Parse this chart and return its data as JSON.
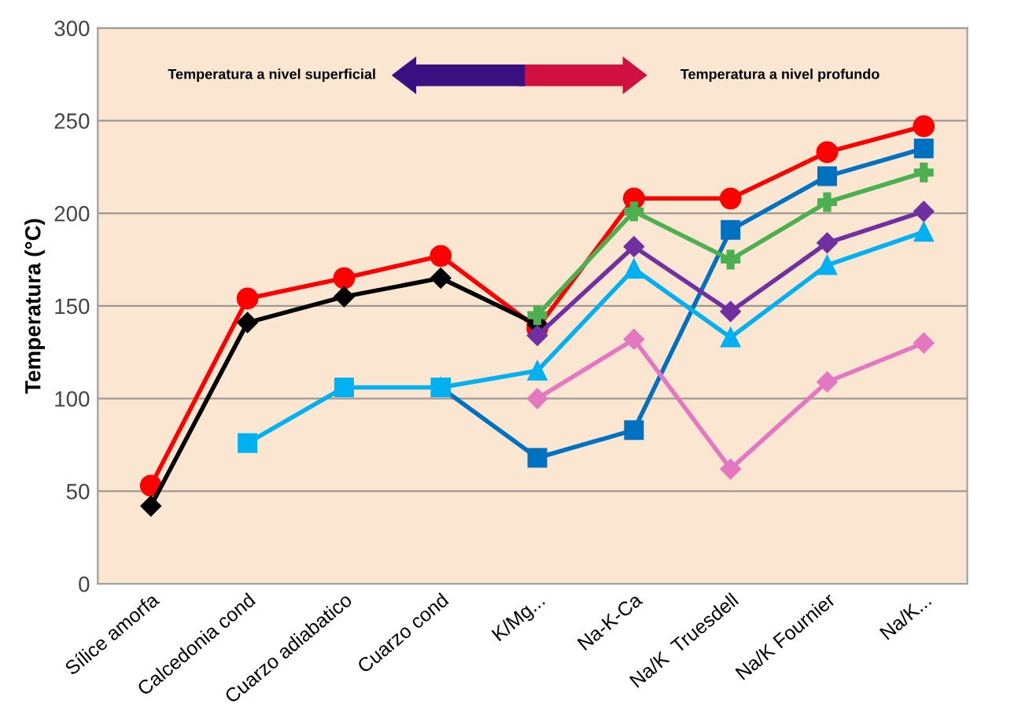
{
  "chart_data": {
    "type": "line",
    "ylabel": "Temperatura (°C)",
    "categories": [
      "Sílice amorfa",
      "Calcedonia cond",
      "Cuarzo adiabatico",
      "Cuarzo cond",
      "K/Mg...",
      "Na-K-Ca",
      "Na/K  Truesdell",
      "Na/K Fournier",
      "Na/K..."
    ],
    "series": [
      {
        "color": "#ff0000",
        "marker": "circle",
        "values": [
          53,
          154,
          165,
          177,
          138,
          208,
          208,
          233,
          247
        ]
      },
      {
        "color": "#000000",
        "marker": "diamond",
        "values": [
          42,
          141,
          155,
          165,
          140,
          null,
          null,
          null,
          null
        ]
      },
      {
        "color": "#0070c0",
        "marker": "square",
        "values": [
          null,
          null,
          null,
          106,
          68,
          83,
          191,
          220,
          235
        ]
      },
      {
        "color": "#00b0f0",
        "marker": "triangle",
        "values": [
          null,
          null,
          null,
          106,
          115,
          170,
          133,
          172,
          190
        ]
      },
      {
        "color": "#00b0f0",
        "marker": "square",
        "values": [
          null,
          76,
          106,
          106,
          null,
          null,
          null,
          null,
          null
        ]
      },
      {
        "color": "#7030a0",
        "marker": "diamond",
        "values": [
          null,
          null,
          null,
          null,
          134,
          182,
          147,
          184,
          201
        ]
      },
      {
        "color": "#e377c2",
        "marker": "diamond",
        "values": [
          null,
          null,
          null,
          null,
          100,
          132,
          62,
          109,
          130
        ]
      },
      {
        "color": "#4caf50",
        "marker": "cross",
        "values": [
          null,
          null,
          null,
          null,
          145,
          201,
          175,
          206,
          222
        ]
      }
    ],
    "ylim": [
      0,
      300
    ],
    "yticks": [
      0,
      50,
      100,
      150,
      200,
      250,
      300
    ],
    "grid": "y",
    "annotations": [
      "Temperatura a nivel superficial",
      "Temperatura a nivel profundo"
    ]
  }
}
